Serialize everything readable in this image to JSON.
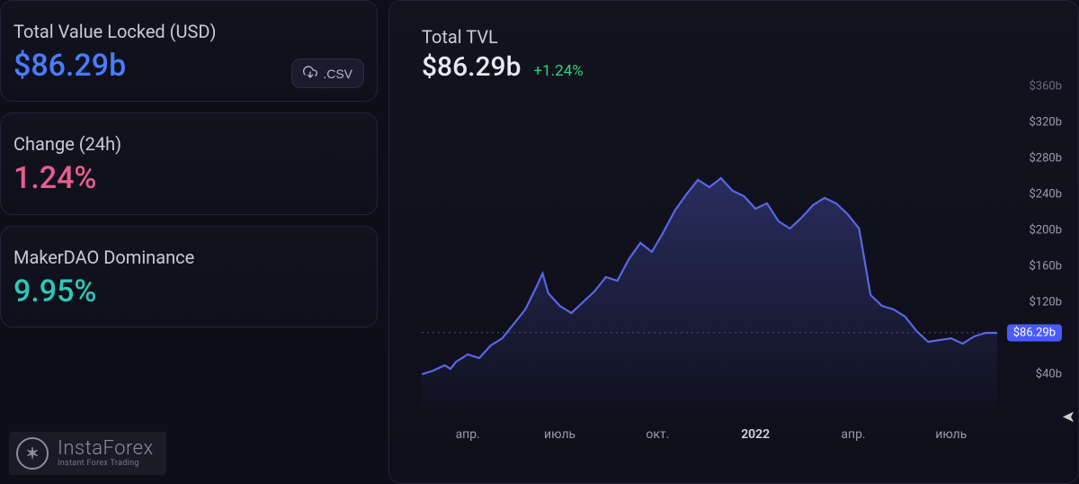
{
  "sidebar": {
    "tvl": {
      "label": "Total Value Locked (USD)",
      "value": "$86.29b",
      "color": "#4a7cff"
    },
    "csv_button": {
      "label": ".CSV"
    },
    "change24h": {
      "label": "Change (24h)",
      "value": "1.24%",
      "color": "#e85e8e"
    },
    "dominance": {
      "label": "MakerDAO Dominance",
      "value": "9.95%",
      "color": "#2ec7b6"
    }
  },
  "chart": {
    "title": "Total TVL",
    "value": "$86.29b",
    "change": "+1.24%",
    "change_color": "#2bd47a",
    "line_color": "#5a66e6",
    "area_top_color": "rgba(90,102,230,0.32)",
    "area_bot_color": "rgba(90,102,230,0.02)",
    "background_color": "#0e0f1a",
    "grid_color": "#1a1b2c",
    "dotted_line_color": "#3a4b8c",
    "current_badge": "$86.29b",
    "current_y_value": 86.29,
    "y_axis": {
      "min": 0,
      "max": 360,
      "ticks": [
        {
          "v": 360,
          "label": "$360b"
        },
        {
          "v": 320,
          "label": "$320b"
        },
        {
          "v": 280,
          "label": "$280b"
        },
        {
          "v": 240,
          "label": "$240b"
        },
        {
          "v": 200,
          "label": "$200b"
        },
        {
          "v": 160,
          "label": "$160b"
        },
        {
          "v": 120,
          "label": "$120b"
        },
        {
          "v": 40,
          "label": "$40b"
        }
      ]
    },
    "x_axis": {
      "ticks": [
        {
          "x": 0.08,
          "label": "апр."
        },
        {
          "x": 0.24,
          "label": "июль"
        },
        {
          "x": 0.41,
          "label": "окт."
        },
        {
          "x": 0.58,
          "label": "2022",
          "bold": true
        },
        {
          "x": 0.75,
          "label": "апр."
        },
        {
          "x": 0.92,
          "label": "июль"
        }
      ]
    },
    "series": [
      [
        0.0,
        40
      ],
      [
        0.02,
        44
      ],
      [
        0.04,
        50
      ],
      [
        0.05,
        46
      ],
      [
        0.06,
        54
      ],
      [
        0.08,
        62
      ],
      [
        0.1,
        58
      ],
      [
        0.12,
        72
      ],
      [
        0.14,
        80
      ],
      [
        0.16,
        96
      ],
      [
        0.18,
        112
      ],
      [
        0.2,
        138
      ],
      [
        0.21,
        152
      ],
      [
        0.22,
        130
      ],
      [
        0.24,
        116
      ],
      [
        0.26,
        108
      ],
      [
        0.28,
        120
      ],
      [
        0.3,
        132
      ],
      [
        0.32,
        148
      ],
      [
        0.34,
        144
      ],
      [
        0.36,
        168
      ],
      [
        0.38,
        186
      ],
      [
        0.4,
        176
      ],
      [
        0.42,
        198
      ],
      [
        0.44,
        222
      ],
      [
        0.46,
        240
      ],
      [
        0.48,
        256
      ],
      [
        0.5,
        248
      ],
      [
        0.52,
        258
      ],
      [
        0.54,
        244
      ],
      [
        0.56,
        238
      ],
      [
        0.58,
        224
      ],
      [
        0.6,
        230
      ],
      [
        0.62,
        210
      ],
      [
        0.64,
        202
      ],
      [
        0.66,
        214
      ],
      [
        0.68,
        228
      ],
      [
        0.7,
        236
      ],
      [
        0.72,
        230
      ],
      [
        0.74,
        218
      ],
      [
        0.76,
        202
      ],
      [
        0.78,
        128
      ],
      [
        0.8,
        116
      ],
      [
        0.82,
        112
      ],
      [
        0.84,
        104
      ],
      [
        0.86,
        88
      ],
      [
        0.88,
        76
      ],
      [
        0.9,
        78
      ],
      [
        0.92,
        80
      ],
      [
        0.94,
        74
      ],
      [
        0.96,
        82
      ],
      [
        0.98,
        86
      ],
      [
        1.0,
        86
      ]
    ]
  },
  "watermark": {
    "brand": "InstaForex",
    "tagline": "Instant Forex Trading"
  }
}
